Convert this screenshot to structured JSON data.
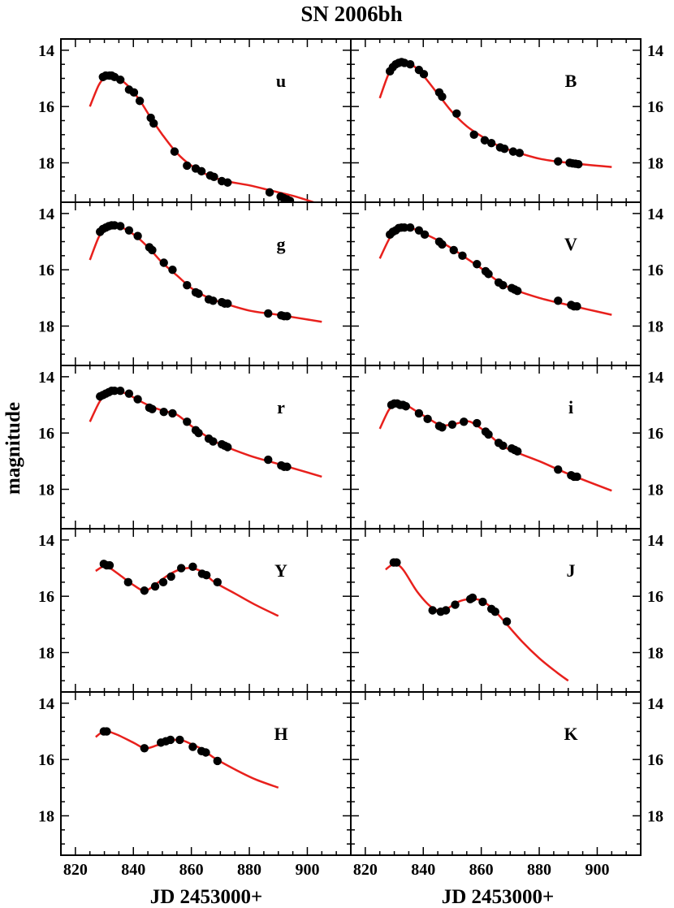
{
  "chart_data": {
    "type": "scatter",
    "title": "SN 2006bh",
    "xlabel": "JD 2453000+",
    "ylabel": "magnitude",
    "xlim": [
      815,
      915
    ],
    "ylim": [
      19.4,
      13.6
    ],
    "y_inverted": true,
    "xticks": [
      820,
      840,
      860,
      880,
      900
    ],
    "yticks": [
      14,
      16,
      18
    ],
    "grid": false,
    "layout": "5 rows x 2 columns",
    "fit_color": "#e8201c",
    "point_color": "#000000",
    "panels": [
      {
        "band": "u",
        "x": [
          829.5,
          830.5,
          831.8,
          832.5,
          833.5,
          835.5,
          838.5,
          840.2,
          842.2,
          846.0,
          847.0,
          854.2,
          858.5,
          861.5,
          863.5,
          866.5,
          867.8,
          870.5,
          872.5,
          887.0,
          890.8,
          891.8,
          893.0,
          894.0
        ],
        "y": [
          14.95,
          14.9,
          14.9,
          14.9,
          14.95,
          15.05,
          15.4,
          15.5,
          15.8,
          16.4,
          16.6,
          17.6,
          18.1,
          18.2,
          18.3,
          18.45,
          18.5,
          18.65,
          18.7,
          19.05,
          19.2,
          19.25,
          19.3,
          19.35
        ],
        "fit_x": [
          825,
          828,
          830,
          832,
          834,
          838,
          842,
          846,
          850,
          855,
          860,
          866,
          872,
          880,
          888,
          896,
          905
        ],
        "fit_y": [
          16.0,
          15.25,
          15.0,
          14.93,
          14.95,
          15.25,
          15.75,
          16.4,
          17.0,
          17.65,
          18.1,
          18.45,
          18.65,
          18.8,
          19.0,
          19.2,
          19.5
        ]
      },
      {
        "band": "B",
        "x": [
          828.5,
          829.5,
          830.5,
          831.5,
          832.5,
          833.5,
          835.5,
          838.5,
          840.2,
          845.5,
          846.5,
          851.5,
          857.5,
          861.2,
          863.5,
          866.5,
          868.0,
          871.0,
          873.2,
          886.5,
          890.5,
          891.5,
          892.5,
          893.5
        ],
        "y": [
          14.75,
          14.6,
          14.5,
          14.45,
          14.42,
          14.45,
          14.5,
          14.7,
          14.85,
          15.5,
          15.65,
          16.25,
          17.0,
          17.2,
          17.3,
          17.45,
          17.5,
          17.6,
          17.65,
          17.95,
          18.0,
          18.02,
          18.03,
          18.05
        ],
        "fit_x": [
          825,
          828,
          830,
          832,
          834,
          836,
          840,
          845,
          850,
          855,
          860,
          865,
          870,
          880,
          890,
          905
        ],
        "fit_y": [
          15.7,
          14.85,
          14.6,
          14.45,
          14.43,
          14.5,
          14.9,
          15.55,
          16.2,
          16.7,
          17.05,
          17.35,
          17.55,
          17.85,
          18.0,
          18.15
        ]
      },
      {
        "band": "g",
        "x": [
          828.5,
          829.5,
          830.5,
          831.5,
          832.5,
          833.5,
          835.5,
          838.5,
          841.5,
          845.5,
          846.5,
          850.5,
          853.5,
          858.5,
          861.5,
          862.5,
          866.0,
          867.5,
          870.5,
          871.5,
          872.5,
          886.5,
          891.0,
          892.0,
          893.0
        ],
        "y": [
          14.65,
          14.55,
          14.5,
          14.45,
          14.42,
          14.42,
          14.45,
          14.6,
          14.8,
          15.2,
          15.3,
          15.75,
          16.0,
          16.55,
          16.8,
          16.85,
          17.05,
          17.1,
          17.15,
          17.2,
          17.2,
          17.55,
          17.62,
          17.65,
          17.65
        ],
        "fit_x": [
          825,
          828,
          830,
          832,
          834,
          838,
          842,
          846,
          850,
          855,
          860,
          865,
          870,
          880,
          890,
          905
        ],
        "fit_y": [
          15.65,
          14.85,
          14.55,
          14.43,
          14.42,
          14.6,
          14.9,
          15.3,
          15.75,
          16.2,
          16.65,
          16.95,
          17.15,
          17.45,
          17.6,
          17.85
        ]
      },
      {
        "band": "V",
        "x": [
          828.5,
          829.5,
          830.5,
          831.5,
          832.5,
          833.5,
          835.5,
          838.5,
          840.5,
          845.5,
          846.5,
          850.5,
          853.5,
          858.5,
          861.5,
          862.5,
          866.0,
          867.5,
          870.5,
          871.5,
          872.5,
          886.5,
          891.0,
          892.0,
          893.0
        ],
        "y": [
          14.75,
          14.65,
          14.6,
          14.52,
          14.5,
          14.5,
          14.5,
          14.6,
          14.75,
          15.0,
          15.1,
          15.3,
          15.5,
          15.8,
          16.05,
          16.15,
          16.45,
          16.55,
          16.65,
          16.7,
          16.75,
          17.1,
          17.25,
          17.3,
          17.3
        ],
        "fit_x": [
          825,
          828,
          830,
          832,
          834,
          836,
          840,
          845,
          850,
          855,
          860,
          865,
          870,
          880,
          890,
          905
        ],
        "fit_y": [
          15.6,
          14.95,
          14.65,
          14.52,
          14.5,
          14.52,
          14.7,
          14.95,
          15.25,
          15.6,
          15.95,
          16.35,
          16.65,
          17.0,
          17.25,
          17.6
        ]
      },
      {
        "band": "r",
        "x": [
          828.5,
          829.5,
          830.5,
          831.5,
          832.5,
          833.5,
          835.5,
          838.5,
          841.5,
          845.5,
          846.5,
          850.5,
          853.5,
          858.5,
          861.5,
          862.5,
          866.0,
          867.5,
          870.5,
          871.5,
          872.5,
          886.5,
          891.0,
          892.0,
          893.0
        ],
        "y": [
          14.7,
          14.65,
          14.6,
          14.55,
          14.5,
          14.5,
          14.5,
          14.6,
          14.8,
          15.1,
          15.15,
          15.25,
          15.3,
          15.6,
          15.9,
          16.0,
          16.2,
          16.3,
          16.4,
          16.45,
          16.5,
          16.95,
          17.15,
          17.2,
          17.2
        ],
        "fit_x": [
          825,
          828,
          830,
          832,
          834,
          838,
          842,
          846,
          850,
          855,
          860,
          865,
          870,
          880,
          890,
          905
        ],
        "fit_y": [
          15.6,
          14.95,
          14.65,
          14.52,
          14.5,
          14.62,
          14.85,
          15.05,
          15.2,
          15.35,
          15.75,
          16.1,
          16.4,
          16.8,
          17.1,
          17.55
        ]
      },
      {
        "band": "i",
        "x": [
          829.0,
          830.0,
          831.0,
          832.0,
          833.0,
          834.0,
          838.5,
          841.5,
          845.5,
          846.5,
          850.0,
          854.0,
          858.5,
          861.5,
          862.5,
          866.0,
          867.5,
          870.5,
          871.5,
          872.5,
          886.5,
          891.0,
          892.0,
          893.0
        ],
        "y": [
          15.0,
          14.95,
          14.95,
          15.0,
          15.0,
          15.05,
          15.3,
          15.5,
          15.75,
          15.8,
          15.7,
          15.6,
          15.65,
          15.95,
          16.05,
          16.35,
          16.45,
          16.55,
          16.6,
          16.65,
          17.3,
          17.5,
          17.55,
          17.55
        ],
        "fit_x": [
          825,
          828,
          830,
          832,
          834,
          838,
          842,
          846,
          850,
          855,
          858,
          862,
          866,
          870,
          880,
          890,
          905
        ],
        "fit_y": [
          15.85,
          15.2,
          15.0,
          14.95,
          15.0,
          15.25,
          15.5,
          15.72,
          15.7,
          15.58,
          15.7,
          16.0,
          16.35,
          16.6,
          17.0,
          17.45,
          18.05
        ]
      },
      {
        "band": "Y",
        "x": [
          829.8,
          830.8,
          831.8,
          838.2,
          843.8,
          847.5,
          850.3,
          853.0,
          856.5,
          860.5,
          863.7,
          865.2,
          869.0
        ],
        "y": [
          14.85,
          14.9,
          14.9,
          15.5,
          15.8,
          15.65,
          15.5,
          15.3,
          15.0,
          14.95,
          15.2,
          15.25,
          15.5
        ],
        "fit_x": [
          827,
          830,
          832,
          836,
          840,
          844,
          848,
          852,
          856,
          860,
          864,
          868,
          875,
          882,
          890
        ],
        "fit_y": [
          15.1,
          14.92,
          15.0,
          15.3,
          15.6,
          15.8,
          15.55,
          15.25,
          15.05,
          15.0,
          15.15,
          15.5,
          15.9,
          16.3,
          16.7
        ]
      },
      {
        "band": "J",
        "x": [
          829.8,
          830.8,
          843.2,
          846.0,
          847.8,
          851.0,
          856.2,
          857.0,
          860.5,
          863.5,
          864.8,
          868.8
        ],
        "y": [
          14.8,
          14.8,
          16.5,
          16.55,
          16.5,
          16.3,
          16.1,
          16.05,
          16.2,
          16.45,
          16.55,
          16.9
        ],
        "fit_x": [
          827,
          830,
          833,
          838,
          843,
          847,
          852,
          856,
          860,
          864,
          868,
          874,
          880,
          886,
          890
        ],
        "fit_y": [
          15.05,
          14.85,
          15.05,
          15.85,
          16.4,
          16.5,
          16.2,
          16.1,
          16.15,
          16.45,
          16.9,
          17.6,
          18.2,
          18.7,
          19.0
        ]
      },
      {
        "band": "H",
        "x": [
          829.8,
          830.8,
          843.8,
          849.5,
          851.2,
          852.8,
          856.0,
          860.5,
          863.5,
          865.0,
          869.0
        ],
        "y": [
          15.0,
          15.0,
          15.6,
          15.4,
          15.35,
          15.3,
          15.3,
          15.55,
          15.7,
          15.75,
          16.05
        ],
        "fit_x": [
          827,
          830,
          834,
          840,
          844,
          848,
          852,
          856,
          860,
          864,
          868,
          875,
          882,
          890
        ],
        "fit_y": [
          15.2,
          15.0,
          15.1,
          15.4,
          15.6,
          15.5,
          15.35,
          15.3,
          15.45,
          15.65,
          15.95,
          16.35,
          16.7,
          17.0
        ]
      },
      {
        "band": "K",
        "x": [],
        "y": [],
        "fit_x": [],
        "fit_y": []
      }
    ]
  }
}
